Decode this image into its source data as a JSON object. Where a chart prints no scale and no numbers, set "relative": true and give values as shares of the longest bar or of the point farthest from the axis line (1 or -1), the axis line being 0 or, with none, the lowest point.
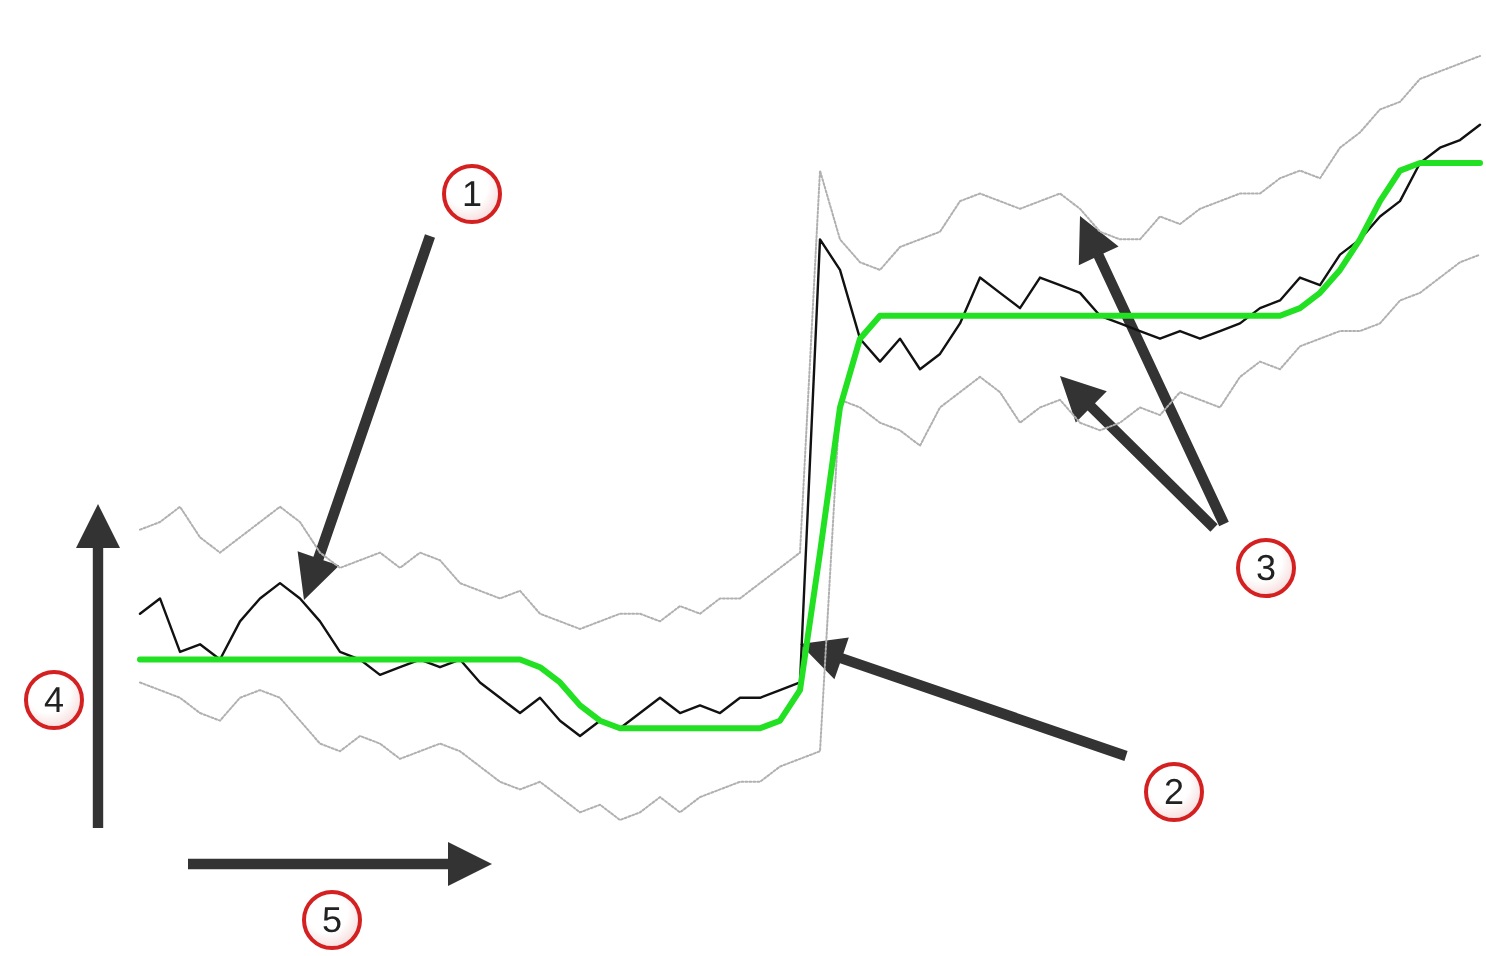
{
  "chart_data": {
    "type": "line",
    "relative": true,
    "marker": "none",
    "grid": false,
    "categories": [
      null,
      null,
      null,
      null,
      null,
      null,
      null,
      null,
      null,
      null,
      null,
      null,
      null,
      null,
      null,
      null,
      null,
      null,
      null,
      null,
      null,
      null,
      null,
      null,
      null,
      null,
      null,
      null,
      null,
      null,
      null,
      null,
      null,
      null,
      null,
      null,
      null,
      null,
      null,
      null,
      null,
      null,
      null,
      null,
      null,
      null,
      null,
      null,
      null,
      null,
      null,
      null,
      null,
      null,
      null,
      null,
      null,
      null,
      null,
      null,
      null,
      null,
      null,
      null,
      null,
      null,
      null,
      null
    ],
    "series": [
      {
        "color": "#b0b0b0",
        "line_style": "dotted",
        "values": [
          0.38,
          0.39,
          0.41,
          0.37,
          0.35,
          0.37,
          0.39,
          0.41,
          0.39,
          0.35,
          0.33,
          0.34,
          0.35,
          0.33,
          0.35,
          0.34,
          0.31,
          0.3,
          0.29,
          0.3,
          0.27,
          0.26,
          0.25,
          0.26,
          0.27,
          0.27,
          0.26,
          0.28,
          0.27,
          0.29,
          0.29,
          0.31,
          0.33,
          0.35,
          0.85,
          0.76,
          0.73,
          0.72,
          0.75,
          0.76,
          0.77,
          0.81,
          0.82,
          0.81,
          0.8,
          0.81,
          0.82,
          0.8,
          0.77,
          0.76,
          0.76,
          0.79,
          0.78,
          0.8,
          0.81,
          0.82,
          0.82,
          0.84,
          0.85,
          0.84,
          0.88,
          0.9,
          0.93,
          0.94,
          0.97,
          0.98,
          0.99,
          1.0
        ]
      },
      {
        "color": "#b0b0b0",
        "line_style": "dotted",
        "values": [
          0.18,
          0.17,
          0.16,
          0.14,
          0.13,
          0.16,
          0.17,
          0.16,
          0.13,
          0.1,
          0.09,
          0.11,
          0.1,
          0.08,
          0.09,
          0.1,
          0.09,
          0.07,
          0.05,
          0.04,
          0.05,
          0.03,
          0.01,
          0.02,
          0,
          0.01,
          0.03,
          0.01,
          0.03,
          0.04,
          0.05,
          0.05,
          0.07,
          0.08,
          0.09,
          0.55,
          0.54,
          0.52,
          0.51,
          0.49,
          0.54,
          0.56,
          0.58,
          0.56,
          0.52,
          0.54,
          0.55,
          0.52,
          0.51,
          0.52,
          0.54,
          0.53,
          0.56,
          0.55,
          0.54,
          0.58,
          0.6,
          0.59,
          0.62,
          0.63,
          0.64,
          0.64,
          0.65,
          0.68,
          0.69,
          0.71,
          0.73,
          0.74
        ]
      },
      {
        "color": "#111111",
        "line_style": "solid",
        "values": [
          0.27,
          0.29,
          0.22,
          0.23,
          0.21,
          0.26,
          0.29,
          0.31,
          0.29,
          0.26,
          0.22,
          0.21,
          0.19,
          0.2,
          0.21,
          0.2,
          0.21,
          0.18,
          0.16,
          0.14,
          0.16,
          0.13,
          0.11,
          0.13,
          0.12,
          0.14,
          0.16,
          0.14,
          0.15,
          0.14,
          0.16,
          0.16,
          0.17,
          0.18,
          0.76,
          0.72,
          0.63,
          0.6,
          0.63,
          0.59,
          0.61,
          0.65,
          0.71,
          0.69,
          0.67,
          0.71,
          0.7,
          0.69,
          0.66,
          0.65,
          0.64,
          0.63,
          0.64,
          0.63,
          0.64,
          0.65,
          0.67,
          0.68,
          0.71,
          0.7,
          0.74,
          0.76,
          0.79,
          0.81,
          0.86,
          0.88,
          0.89,
          0.91
        ]
      },
      {
        "color": "#22e022",
        "line_style": "solid",
        "values": [
          0.21,
          0.21,
          0.21,
          0.21,
          0.21,
          0.21,
          0.21,
          0.21,
          0.21,
          0.21,
          0.21,
          0.21,
          0.21,
          0.21,
          0.21,
          0.21,
          0.21,
          0.21,
          0.21,
          0.21,
          0.2,
          0.18,
          0.15,
          0.13,
          0.12,
          0.12,
          0.12,
          0.12,
          0.12,
          0.12,
          0.12,
          0.12,
          0.13,
          0.17,
          0.35,
          0.54,
          0.63,
          0.66,
          0.66,
          0.66,
          0.66,
          0.66,
          0.66,
          0.66,
          0.66,
          0.66,
          0.66,
          0.66,
          0.66,
          0.66,
          0.66,
          0.66,
          0.66,
          0.66,
          0.66,
          0.66,
          0.66,
          0.66,
          0.67,
          0.69,
          0.72,
          0.76,
          0.81,
          0.85,
          0.86,
          0.86,
          0.86,
          0.86
        ]
      }
    ],
    "annotations": [
      "1",
      "2",
      "3",
      "4",
      "5"
    ]
  }
}
